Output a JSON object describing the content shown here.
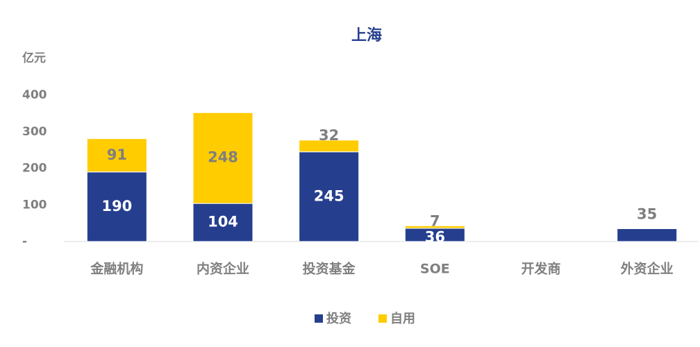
{
  "chart_data": {
    "type": "bar",
    "stacked": true,
    "title": "上海",
    "y_label": "亿元",
    "categories": [
      "金融机构",
      "内资企业",
      "投资基金",
      "SOE",
      "开发商",
      "外资企业"
    ],
    "series": [
      {
        "name": "投资",
        "color": "#253f8e",
        "values": [
          190,
          104,
          245,
          36,
          null,
          35
        ]
      },
      {
        "name": "自用",
        "color": "#ffcc00",
        "values": [
          91,
          248,
          32,
          7,
          null,
          null
        ]
      }
    ],
    "ylim": [
      0,
      400
    ],
    "yticks": [
      {
        "value": 0,
        "label": "-"
      },
      100,
      200,
      300,
      400
    ],
    "legend": "bottom"
  }
}
